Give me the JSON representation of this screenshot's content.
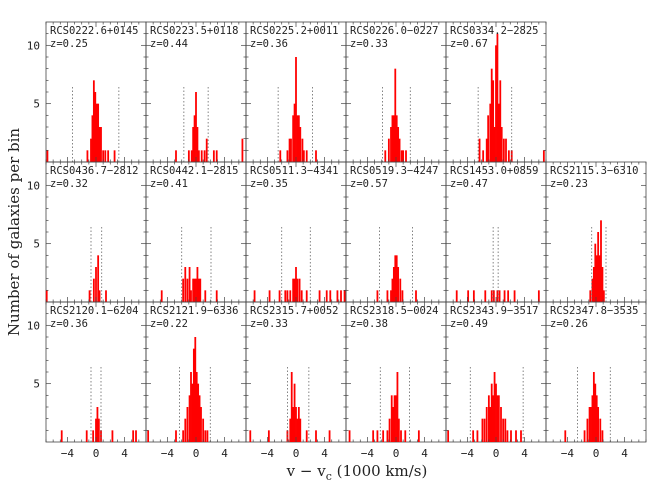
{
  "chart_data": {
    "type": "bar",
    "ylabel": "Number of galaxies per bin",
    "xlabel": "v − v",
    "xlabel_sub": "c",
    "xlabel_units": " (1000 km/s)",
    "xlim": [
      -7,
      7
    ],
    "ylim": [
      0,
      12
    ],
    "bin_width": 0.25,
    "x_ticks": [
      -4,
      0,
      4
    ],
    "y_ticks": [
      5,
      10
    ],
    "x_tick_labels": [
      "−4",
      "0",
      "4"
    ],
    "bar_color": "#ff0000",
    "panels": [
      {
        "name": "RCS0222.6+0145",
        "z": "z=0.25",
        "row": 0,
        "col": 0,
        "sigma_lines": [
          -3.3,
          3.2
        ],
        "bins": [
          [
            -6.8,
            1
          ],
          [
            -1.2,
            1
          ],
          [
            -0.7,
            2
          ],
          [
            -0.5,
            4
          ],
          [
            -0.3,
            7
          ],
          [
            -0.1,
            6
          ],
          [
            0.1,
            5
          ],
          [
            0.3,
            5
          ],
          [
            0.5,
            3
          ],
          [
            0.7,
            3
          ],
          [
            1.0,
            1
          ],
          [
            1.3,
            1
          ],
          [
            1.7,
            1
          ],
          [
            2.6,
            1
          ]
        ]
      },
      {
        "name": "RCS0223.5+0118",
        "z": "z=0.44",
        "row": 0,
        "col": 1,
        "sigma_lines": [
          -1.7,
          1.7
        ],
        "bins": [
          [
            -2.8,
            1
          ],
          [
            -1.0,
            1
          ],
          [
            -0.6,
            1
          ],
          [
            -0.4,
            3
          ],
          [
            -0.2,
            4
          ],
          [
            0.0,
            6
          ],
          [
            0.2,
            3
          ],
          [
            0.4,
            1
          ],
          [
            0.8,
            1
          ],
          [
            1.2,
            1
          ],
          [
            1.5,
            2
          ],
          [
            2.5,
            1
          ],
          [
            2.9,
            1
          ],
          [
            6.5,
            2
          ]
        ]
      },
      {
        "name": "RCS0225.2+0011",
        "z": "z=0.36",
        "row": 0,
        "col": 2,
        "sigma_lines": [
          -2.5,
          2.3
        ],
        "bins": [
          [
            -2.2,
            1
          ],
          [
            -1.2,
            1
          ],
          [
            -0.9,
            2
          ],
          [
            -0.7,
            2
          ],
          [
            -0.4,
            4
          ],
          [
            -0.2,
            5
          ],
          [
            0.0,
            9
          ],
          [
            0.2,
            4
          ],
          [
            0.4,
            4
          ],
          [
            0.6,
            3
          ],
          [
            0.9,
            2
          ],
          [
            1.1,
            1
          ],
          [
            1.5,
            1
          ],
          [
            2.8,
            1
          ]
        ]
      },
      {
        "name": "RCS0226.0−0227",
        "z": "z=0.33",
        "row": 0,
        "col": 3,
        "sigma_lines": [
          -1.9,
          2.0
        ],
        "bins": [
          [
            -1.5,
            1
          ],
          [
            -1.0,
            2
          ],
          [
            -0.7,
            3
          ],
          [
            -0.5,
            4
          ],
          [
            -0.3,
            4
          ],
          [
            -0.1,
            8
          ],
          [
            0.1,
            4
          ],
          [
            0.3,
            3
          ],
          [
            0.5,
            2
          ],
          [
            0.8,
            1
          ],
          [
            1.0,
            1
          ],
          [
            1.4,
            1
          ]
        ]
      },
      {
        "name": "RCS0334.2−2825",
        "z": "z=0.67",
        "row": 0,
        "col": 4,
        "sigma_lines": [
          -2.5,
          2.2
        ],
        "bins": [
          [
            -2.3,
            2
          ],
          [
            -1.8,
            1
          ],
          [
            -1.3,
            2
          ],
          [
            -1.1,
            4
          ],
          [
            -0.8,
            5
          ],
          [
            -0.6,
            8
          ],
          [
            -0.4,
            7
          ],
          [
            -0.2,
            3
          ],
          [
            0.0,
            10
          ],
          [
            0.2,
            11
          ],
          [
            0.4,
            5
          ],
          [
            0.6,
            7
          ],
          [
            0.8,
            3
          ],
          [
            1.1,
            2
          ],
          [
            1.4,
            2
          ],
          [
            1.8,
            1
          ],
          [
            2.2,
            1
          ],
          [
            6.7,
            1
          ]
        ]
      },
      {
        "name": "RCS0436.7−2812",
        "z": "z=0.32",
        "row": 1,
        "col": 0,
        "sigma_lines": [
          -0.7,
          0.8
        ],
        "bins": [
          [
            -6.9,
            1
          ],
          [
            -0.9,
            1
          ],
          [
            -0.3,
            2
          ],
          [
            0.0,
            3
          ],
          [
            0.3,
            4
          ],
          [
            0.5,
            1
          ],
          [
            1.4,
            1
          ]
        ]
      },
      {
        "name": "RCS0442.1−2815",
        "z": "z=0.41",
        "row": 1,
        "col": 1,
        "sigma_lines": [
          -2.0,
          2.1
        ],
        "bins": [
          [
            -4.8,
            1
          ],
          [
            -1.8,
            2
          ],
          [
            -1.5,
            3
          ],
          [
            -1.2,
            2
          ],
          [
            -0.9,
            3
          ],
          [
            -0.7,
            1
          ],
          [
            -0.4,
            2
          ],
          [
            -0.2,
            2
          ],
          [
            0.0,
            2
          ],
          [
            0.2,
            3
          ],
          [
            0.4,
            2
          ],
          [
            0.6,
            2
          ],
          [
            1.3,
            1
          ],
          [
            2.9,
            1
          ]
        ]
      },
      {
        "name": "RCS0511.3−4341",
        "z": "z=0.35",
        "row": 1,
        "col": 2,
        "sigma_lines": [
          -2.0,
          2.0
        ],
        "bins": [
          [
            -5.8,
            1
          ],
          [
            -3.7,
            1
          ],
          [
            -2.3,
            1
          ],
          [
            -1.5,
            1
          ],
          [
            -1.2,
            1
          ],
          [
            -0.8,
            1
          ],
          [
            -0.4,
            2
          ],
          [
            -0.2,
            2
          ],
          [
            0.0,
            3
          ],
          [
            0.2,
            2
          ],
          [
            0.5,
            2
          ],
          [
            0.8,
            1
          ],
          [
            1.5,
            1
          ],
          [
            3.3,
            1
          ],
          [
            4.3,
            1
          ],
          [
            4.8,
            1
          ],
          [
            5.8,
            1
          ],
          [
            6.3,
            1
          ],
          [
            6.8,
            1
          ]
        ]
      },
      {
        "name": "RCS0519.3−4247",
        "z": "z=0.57",
        "row": 1,
        "col": 3,
        "sigma_lines": [
          -2.3,
          2.3
        ],
        "bins": [
          [
            -2.6,
            1
          ],
          [
            -1.2,
            1
          ],
          [
            -0.7,
            1
          ],
          [
            -0.5,
            2
          ],
          [
            -0.3,
            3
          ],
          [
            -0.1,
            4
          ],
          [
            0.1,
            4
          ],
          [
            0.3,
            3
          ],
          [
            0.6,
            2
          ],
          [
            0.9,
            1
          ],
          [
            2.8,
            1
          ]
        ]
      },
      {
        "name": "RCS1453.0+0859",
        "z": "z=0.47",
        "row": 1,
        "col": 4,
        "sigma_lines": [
          -0.4,
          0.3
        ],
        "bins": [
          [
            -5.5,
            1
          ],
          [
            -3.9,
            1
          ],
          [
            -3.1,
            1
          ],
          [
            -1.5,
            1
          ],
          [
            -0.6,
            1
          ],
          [
            -0.3,
            1
          ],
          [
            0.2,
            1
          ],
          [
            0.5,
            1
          ],
          [
            1.2,
            1
          ],
          [
            1.7,
            1
          ],
          [
            2.6,
            1
          ],
          [
            6.0,
            1
          ]
        ]
      },
      {
        "name": "RCS2115.3−6310",
        "z": "z=0.23",
        "row": 1,
        "col": 5,
        "sigma_lines": [
          -0.6,
          1.4
        ],
        "bins": [
          [
            -0.8,
            1
          ],
          [
            -0.5,
            2
          ],
          [
            -0.3,
            3
          ],
          [
            -0.1,
            5
          ],
          [
            0.1,
            4
          ],
          [
            0.3,
            6
          ],
          [
            0.5,
            4
          ],
          [
            0.7,
            7
          ],
          [
            0.9,
            3
          ],
          [
            1.1,
            1
          ]
        ]
      },
      {
        "name": "RCS2120.1−6204",
        "z": "z=0.36",
        "row": 2,
        "col": 0,
        "sigma_lines": [
          -0.7,
          0.7
        ],
        "bins": [
          [
            -4.8,
            1
          ],
          [
            -1.3,
            1
          ],
          [
            -0.4,
            1
          ],
          [
            0.0,
            2
          ],
          [
            0.2,
            3
          ],
          [
            0.4,
            2
          ],
          [
            0.7,
            1
          ],
          [
            2.3,
            1
          ],
          [
            5.2,
            1
          ],
          [
            5.6,
            1
          ]
        ]
      },
      {
        "name": "RCS2121.9−6336",
        "z": "z=0.22",
        "row": 2,
        "col": 1,
        "sigma_lines": [
          -2.3,
          2.0
        ],
        "bins": [
          [
            -6.7,
            1
          ],
          [
            -2.8,
            1
          ],
          [
            -1.8,
            1
          ],
          [
            -1.5,
            2
          ],
          [
            -1.2,
            3
          ],
          [
            -0.9,
            4
          ],
          [
            -0.7,
            6
          ],
          [
            -0.5,
            5
          ],
          [
            -0.3,
            8
          ],
          [
            -0.1,
            9
          ],
          [
            0.1,
            6
          ],
          [
            0.3,
            5
          ],
          [
            0.5,
            4
          ],
          [
            0.7,
            3
          ],
          [
            1.0,
            2
          ],
          [
            1.3,
            1
          ],
          [
            1.6,
            1
          ]
        ]
      },
      {
        "name": "RCS2315.7+0052",
        "z": "z=0.33",
        "row": 2,
        "col": 2,
        "sigma_lines": [
          -1.2,
          1.8
        ],
        "bins": [
          [
            -6.4,
            1
          ],
          [
            -3.8,
            1
          ],
          [
            -1.2,
            1
          ],
          [
            -0.8,
            2
          ],
          [
            -0.6,
            6
          ],
          [
            -0.4,
            3
          ],
          [
            -0.2,
            5
          ],
          [
            0.0,
            3
          ],
          [
            0.2,
            2
          ],
          [
            0.4,
            3
          ],
          [
            0.6,
            2
          ],
          [
            1.5,
            1
          ],
          [
            2.8,
            1
          ],
          [
            4.7,
            1
          ]
        ]
      },
      {
        "name": "RCS2318.5−0024",
        "z": "z=0.38",
        "row": 2,
        "col": 3,
        "sigma_lines": [
          -2.2,
          1.9
        ],
        "bins": [
          [
            -6.5,
            1
          ],
          [
            -3.2,
            1
          ],
          [
            -2.6,
            1
          ],
          [
            -1.8,
            1
          ],
          [
            -1.2,
            1
          ],
          [
            -0.9,
            2
          ],
          [
            -0.6,
            4
          ],
          [
            -0.4,
            3
          ],
          [
            -0.2,
            4
          ],
          [
            0.0,
            4
          ],
          [
            0.2,
            6
          ],
          [
            0.4,
            2
          ],
          [
            0.7,
            1
          ],
          [
            1.3,
            1
          ],
          [
            3.2,
            1
          ]
        ]
      },
      {
        "name": "RCS2343.9−3517",
        "z": "z=0.49",
        "row": 2,
        "col": 4,
        "sigma_lines": [
          -3.6,
          3.8
        ],
        "bins": [
          [
            -6.7,
            1
          ],
          [
            -3.2,
            1
          ],
          [
            -2.6,
            1
          ],
          [
            -1.9,
            2
          ],
          [
            -1.6,
            2
          ],
          [
            -1.3,
            3
          ],
          [
            -1.0,
            4
          ],
          [
            -0.8,
            3
          ],
          [
            -0.6,
            5
          ],
          [
            -0.4,
            4
          ],
          [
            -0.2,
            6
          ],
          [
            0.0,
            5
          ],
          [
            0.2,
            4
          ],
          [
            0.4,
            4
          ],
          [
            0.7,
            3
          ],
          [
            1.0,
            2
          ],
          [
            1.3,
            2
          ],
          [
            1.6,
            1
          ],
          [
            2.1,
            1
          ],
          [
            2.8,
            1
          ],
          [
            3.5,
            1
          ]
        ]
      },
      {
        "name": "RCS2347.8−3535",
        "z": "z=0.26",
        "row": 2,
        "col": 5,
        "sigma_lines": [
          -2.6,
          2.0
        ],
        "bins": [
          [
            -4.3,
            1
          ],
          [
            -1.6,
            1
          ],
          [
            -1.2,
            2
          ],
          [
            -0.9,
            3
          ],
          [
            -0.7,
            3
          ],
          [
            -0.5,
            4
          ],
          [
            -0.3,
            6
          ],
          [
            -0.1,
            5
          ],
          [
            0.1,
            4
          ],
          [
            0.3,
            3
          ],
          [
            0.6,
            2
          ],
          [
            0.9,
            1
          ]
        ]
      }
    ]
  }
}
